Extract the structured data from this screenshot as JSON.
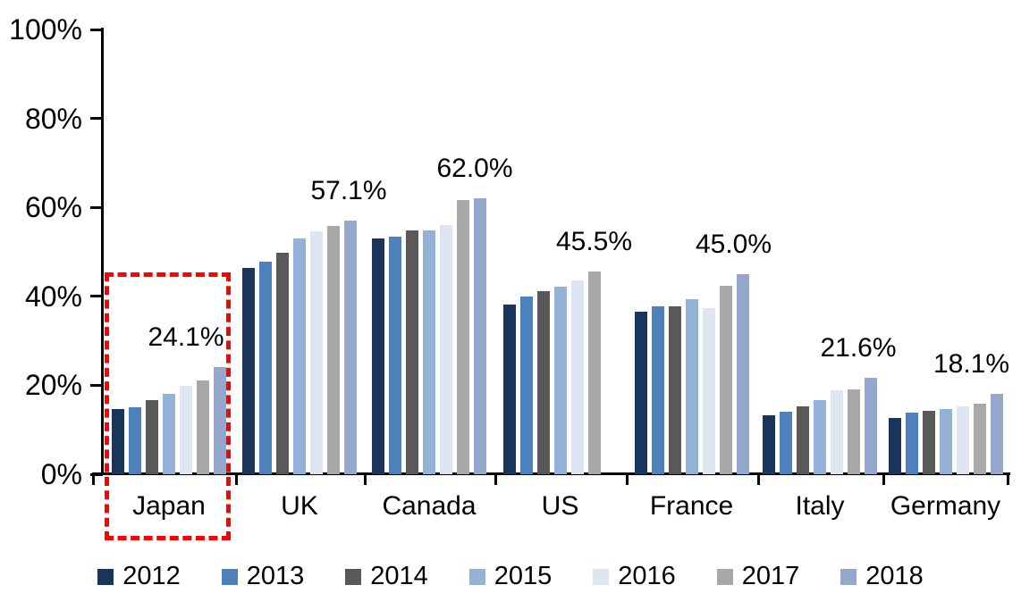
{
  "chart_data": {
    "type": "bar",
    "unit": "%",
    "categories": [
      "Japan",
      "UK",
      "Canada",
      "US",
      "France",
      "Italy",
      "Germany"
    ],
    "series": [
      {
        "name": "2012",
        "color": "#1A355C",
        "values": [
          14.7,
          46.3,
          53.0,
          38.2,
          36.5,
          13.2,
          12.6
        ]
      },
      {
        "name": "2013",
        "color": "#4E80BC",
        "values": [
          15.0,
          47.7,
          53.4,
          40.0,
          37.7,
          14.1,
          13.9
        ]
      },
      {
        "name": "2014",
        "color": "#595959",
        "values": [
          16.6,
          49.9,
          54.9,
          41.1,
          37.7,
          15.2,
          14.3
        ]
      },
      {
        "name": "2015",
        "color": "#94B1D8",
        "values": [
          18.0,
          53.1,
          54.8,
          42.1,
          39.4,
          16.7,
          14.6
        ]
      },
      {
        "name": "2016",
        "color": "#DCE5F1",
        "values": [
          19.9,
          54.6,
          56.1,
          43.6,
          37.4,
          18.8,
          15.2
        ]
      },
      {
        "name": "2017",
        "color": "#A8A8A8",
        "values": [
          21.0,
          55.8,
          61.6,
          45.5,
          42.3,
          19.0,
          15.8
        ]
      },
      {
        "name": "2018",
        "color": "#96A7CE",
        "values": [
          24.1,
          57.1,
          62.0,
          null,
          45.0,
          21.6,
          18.1
        ]
      }
    ],
    "data_labels": [
      {
        "category": "Japan",
        "text": "24.1%"
      },
      {
        "category": "UK",
        "text": "57.1%"
      },
      {
        "category": "Canada",
        "text": "62.0%"
      },
      {
        "category": "US",
        "text": "45.5%"
      },
      {
        "category": "France",
        "text": "45.0%"
      },
      {
        "category": "Italy",
        "text": "21.6%"
      },
      {
        "category": "Germany",
        "text": "18.1%"
      }
    ],
    "y_axis": {
      "min": 0,
      "max": 100,
      "ticks": [
        {
          "label": "0%",
          "value": 0
        },
        {
          "label": "20%",
          "value": 20
        },
        {
          "label": "40%",
          "value": 40
        },
        {
          "label": "60%",
          "value": 60
        },
        {
          "label": "80%",
          "value": 80
        },
        {
          "label": "100%",
          "value": 100
        }
      ]
    },
    "annotations": {
      "highlight_box": {
        "target": "Japan",
        "color": "#FF0000",
        "style": "dashed"
      }
    },
    "legend": {
      "position": "bottom"
    }
  }
}
